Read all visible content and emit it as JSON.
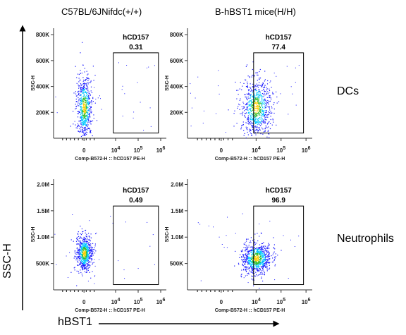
{
  "columns": [
    "C57BL/6JNifdc(+/+)",
    "B-hBST1 mice(H/H)"
  ],
  "rows": [
    "DCs",
    "Neutrophils"
  ],
  "axis_title_y": "SSC-H",
  "axis_title_x": "hBST1",
  "chart_data": [
    {
      "type": "scatter",
      "panel": "DCs / C57BL/6JNifdc(+/+)",
      "xlabel": "Comp-B572-H :: hCD157 PE-H",
      "ylabel": "SSC-H",
      "xscale": "biexponential",
      "xticks": [
        "0",
        "10^4",
        "10^5",
        "10^6"
      ],
      "yticks": [
        "200K",
        "400K",
        "600K",
        "800K"
      ],
      "ylim": [
        0,
        850000
      ],
      "gate": {
        "name": "hCD157",
        "percent": "0.31",
        "x_range": [
          "10^3.9",
          "10^5.9"
        ],
        "y_range": [
          40000,
          660000
        ]
      },
      "population": {
        "x_center": "0",
        "y_center": 240000,
        "y_spread": [
          100000,
          500000
        ]
      }
    },
    {
      "type": "scatter",
      "panel": "DCs / B-hBST1 mice(H/H)",
      "xlabel": "Comp-B572-H :: hCD157 PE-H",
      "ylabel": "SSC-H",
      "xscale": "biexponential",
      "xticks": [
        "0",
        "10^4",
        "10^5",
        "10^6"
      ],
      "yticks": [
        "200K",
        "400K",
        "600K",
        "800K"
      ],
      "ylim": [
        0,
        850000
      ],
      "gate": {
        "name": "hCD157",
        "percent": "77.4",
        "x_range": [
          "10^3.9",
          "10^5.9"
        ],
        "y_range": [
          40000,
          660000
        ]
      },
      "population": {
        "x_center": "10^4",
        "y_center": 240000,
        "y_spread": [
          120000,
          480000
        ]
      }
    },
    {
      "type": "scatter",
      "panel": "Neutrophils / C57BL/6JNifdc(+/+)",
      "xlabel": "Comp-B572-H :: hCD157 PE-H",
      "ylabel": "SSC-H",
      "xscale": "biexponential",
      "xticks": [
        "0",
        "10^4",
        "10^5",
        "10^6"
      ],
      "yticks": [
        "500K",
        "1.0M",
        "1.5M",
        "2.0M"
      ],
      "ylim": [
        0,
        2100000
      ],
      "gate": {
        "name": "hCD157",
        "percent": "0.49",
        "x_range": [
          "10^3.9",
          "10^5.9"
        ],
        "y_range": [
          100000,
          1590000
        ]
      },
      "population": {
        "x_center": "0",
        "y_center": 700000,
        "y_spread": [
          450000,
          1000000
        ]
      }
    },
    {
      "type": "scatter",
      "panel": "Neutrophils / B-hBST1 mice(H/H)",
      "xlabel": "Comp-B572-H :: hCD157 PE-H",
      "ylabel": "SSC-H",
      "xscale": "biexponential",
      "xticks": [
        "0",
        "10^4",
        "10^5",
        "10^6"
      ],
      "yticks": [
        "500K",
        "1.0M",
        "1.5M",
        "2.0M"
      ],
      "ylim": [
        0,
        2100000
      ],
      "gate": {
        "name": "hCD157",
        "percent": "96.9",
        "x_range": [
          "10^3.9",
          "10^5.9"
        ],
        "y_range": [
          100000,
          1590000
        ]
      },
      "population": {
        "x_center": "10^4",
        "y_center": 600000,
        "y_spread": [
          400000,
          900000
        ]
      }
    }
  ],
  "colors": {
    "low": "#1a1aff",
    "mid": "#00c8ff",
    "high": "#2fbf2f",
    "peak": "#ffd000",
    "axis": "#333333",
    "gate": "#000000"
  }
}
